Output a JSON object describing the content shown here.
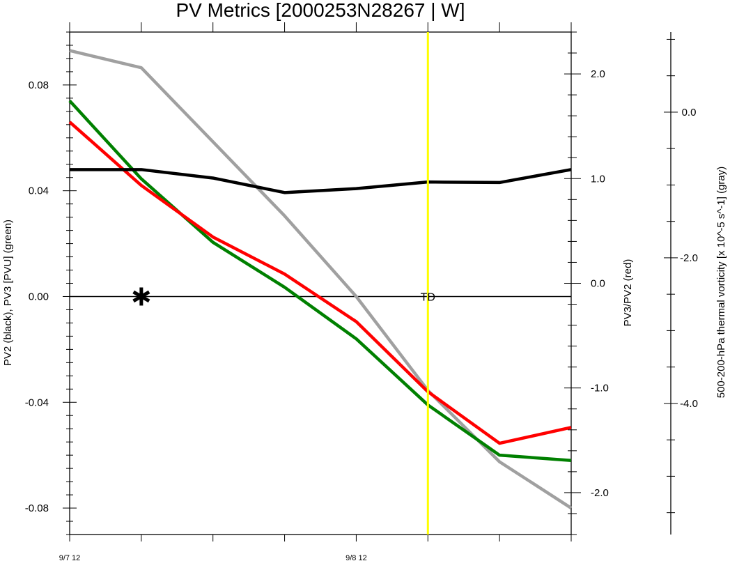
{
  "chart_data": {
    "type": "line",
    "title": "PV Metrics [2000253N28267 | W]",
    "x": [
      0,
      1,
      2,
      3,
      4,
      5,
      6,
      7
    ],
    "xticks": [
      {
        "x": 0,
        "label": "9/7 12"
      },
      {
        "x": 4,
        "label": "9/8 12"
      }
    ],
    "xlim": [
      0,
      7
    ],
    "axes": {
      "left": {
        "label": "PV2 (black), PV3 [PVU] (green)",
        "lim": [
          -0.09,
          0.1
        ],
        "ticks": [
          {
            "v": 0.08,
            "label": "0.08"
          },
          {
            "v": 0.04,
            "label": "0.04"
          },
          {
            "v": 0.0,
            "label": "0.00"
          },
          {
            "v": -0.04,
            "label": "-0.04"
          },
          {
            "v": -0.08,
            "label": "-0.08"
          }
        ]
      },
      "right1": {
        "label": "PV3/PV2 (red)",
        "lim": [
          -2.4,
          2.4
        ],
        "ticks": [
          {
            "v": 2.0,
            "label": "2.0"
          },
          {
            "v": 1.0,
            "label": "1.0"
          },
          {
            "v": 0.0,
            "label": "0.0"
          },
          {
            "v": -1.0,
            "label": "-1.0"
          },
          {
            "v": -2.0,
            "label": "-2.0"
          }
        ]
      },
      "right2": {
        "label": "500-200-hPa thermal vorticity [x 10^-5 s^-1] (gray)",
        "lim": [
          -5.8,
          1.1
        ],
        "ticks": [
          {
            "v": 0.0,
            "label": "0.0"
          },
          {
            "v": -2.0,
            "label": "-2.0"
          },
          {
            "v": -4.0,
            "label": "-4.0"
          }
        ]
      }
    },
    "series": [
      {
        "key": "gray",
        "axis": "left",
        "color": "#a0a0a0",
        "values": [
          0.093,
          0.0865,
          0.0585,
          0.0305,
          0.0,
          -0.0355,
          -0.0625,
          -0.08
        ]
      },
      {
        "key": "green",
        "axis": "left",
        "color": "#008000",
        "values": [
          0.074,
          0.0445,
          0.0205,
          0.0035,
          -0.016,
          -0.041,
          -0.06,
          -0.062
        ]
      },
      {
        "key": "red",
        "axis": "left",
        "color": "#ff0000",
        "values": [
          0.066,
          0.042,
          0.0225,
          0.0085,
          -0.0095,
          -0.036,
          -0.0555,
          -0.0495
        ]
      },
      {
        "key": "black",
        "axis": "left",
        "color": "#000000",
        "values": [
          0.048,
          0.048,
          0.0448,
          0.0393,
          0.0408,
          0.0433,
          0.0431,
          0.048
        ]
      }
    ],
    "zero_line": 0.0,
    "marker_asterisk": {
      "x": 1,
      "y": 0.0
    },
    "vline": {
      "x": 5,
      "label": "TD",
      "color": "#ffff00"
    }
  }
}
